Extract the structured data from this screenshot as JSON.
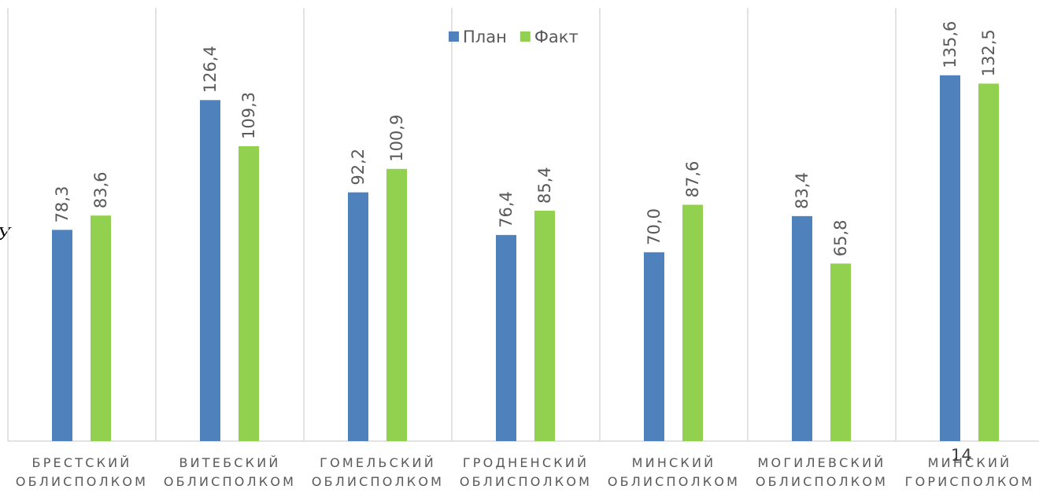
{
  "chart_data": {
    "type": "bar",
    "categories": [
      [
        "БРЕСТСКИЙ",
        "ОБЛИСПОЛКОМ"
      ],
      [
        "ВИТЕБСКИЙ",
        "ОБЛИСПОЛКОМ"
      ],
      [
        "ГОМЕЛЬСКИЙ",
        "ОБЛИСПОЛКОМ"
      ],
      [
        "ГРОДНЕНСКИЙ",
        "ОБЛИСПОЛКОМ"
      ],
      [
        "МИНСКИЙ",
        "ОБЛИСПОЛКОМ"
      ],
      [
        "МОГИЛЕВСКИЙ",
        "ОБЛИСПОЛКОМ"
      ],
      [
        "МИНСКИЙ",
        "ГОРИСПОЛКОМ"
      ]
    ],
    "series": [
      {
        "name": "План",
        "color": "#4f81bd",
        "values": [
          78.3,
          126.4,
          92.2,
          76.4,
          70.0,
          83.4,
          135.6
        ],
        "value_labels": [
          "78,3",
          "126,4",
          "92,2",
          "76,4",
          "70,0",
          "83,4",
          "135,6"
        ]
      },
      {
        "name": "Факт",
        "color": "#92d050",
        "values": [
          83.6,
          109.3,
          100.9,
          85.4,
          87.6,
          65.8,
          132.5
        ],
        "value_labels": [
          "83,6",
          "109,3",
          "100,9",
          "85,4",
          "87,6",
          "65,8",
          "132,5"
        ]
      }
    ],
    "ylim": [
      0,
      160
    ],
    "legend": "top",
    "annotations": [
      "У",
      "14"
    ]
  }
}
